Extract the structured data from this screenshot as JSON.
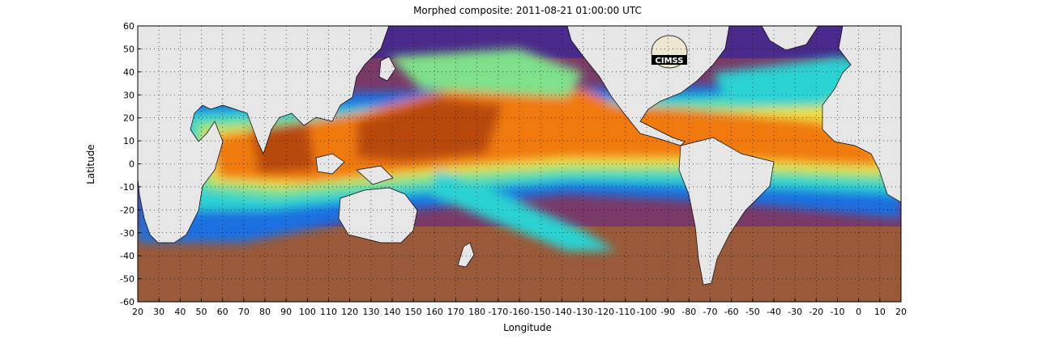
{
  "title": "Morphed composite: 2011-08-21 01:00:00 UTC",
  "xlabel": "Longitude",
  "ylabel": "Latitude",
  "logo_text": "CIMSS",
  "x_ticks": [
    "20",
    "30",
    "40",
    "50",
    "60",
    "70",
    "80",
    "90",
    "100",
    "110",
    "120",
    "130",
    "140",
    "150",
    "160",
    "170",
    "180",
    "-170",
    "-160",
    "-150",
    "-140",
    "-130",
    "-120",
    "-110",
    "-100",
    "-90",
    "-80",
    "-70",
    "-60",
    "-50",
    "-40",
    "-30",
    "-20",
    "-10",
    "0",
    "10",
    "20"
  ],
  "y_ticks": [
    "60",
    "50",
    "40",
    "30",
    "20",
    "10",
    "0",
    "-10",
    "-20",
    "-30",
    "-40",
    "-50",
    "-60"
  ],
  "colors": {
    "land": "#e6e6e6",
    "land_border": "#000000",
    "dry": "#5a1a78",
    "low": "#1f6fe0",
    "mid": "#29d2d2",
    "green": "#7ee08a",
    "yellow": "#f0e040",
    "high": "#f07a10",
    "very_high": "#b8480a",
    "south_brown": "#9a5a3a"
  },
  "grid": "dotted"
}
